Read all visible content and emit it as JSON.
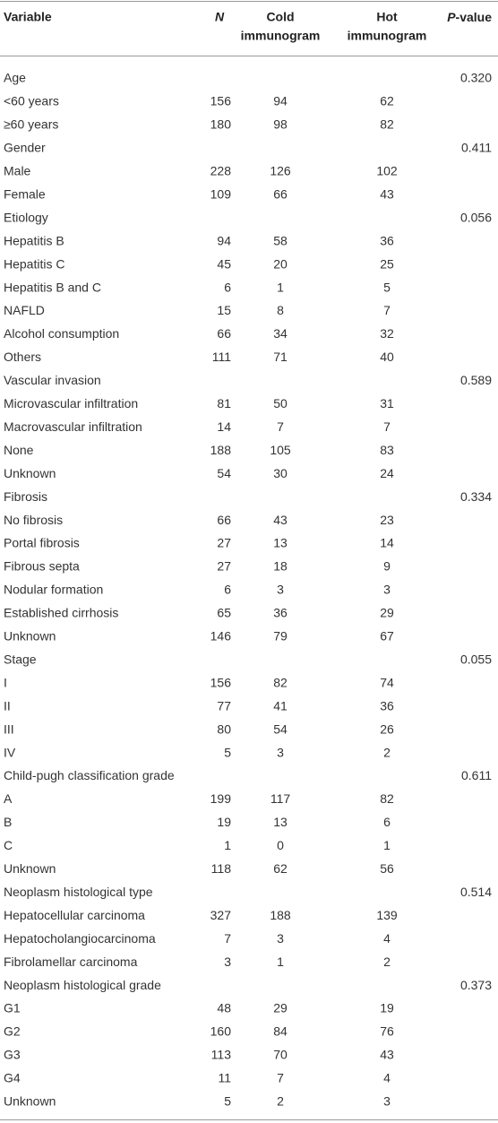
{
  "table": {
    "header": {
      "variable": "Variable",
      "n": "N",
      "cold": [
        "Cold",
        "immunogram"
      ],
      "hot": [
        "Hot",
        "immunogram"
      ],
      "p_value": [
        "P",
        "-value"
      ]
    },
    "rows": [
      {
        "label": "Age",
        "p": "0.320"
      },
      {
        "label": "<60 years",
        "n": "156",
        "cold": "94",
        "hot": "62"
      },
      {
        "label": "≥60 years",
        "n": "180",
        "cold": "98",
        "hot": "82"
      },
      {
        "label": "Gender",
        "p": "0.411"
      },
      {
        "label": "Male",
        "n": "228",
        "cold": "126",
        "hot": "102"
      },
      {
        "label": "Female",
        "n": "109",
        "cold": "66",
        "hot": "43"
      },
      {
        "label": "Etiology",
        "p": "0.056"
      },
      {
        "label": "Hepatitis B",
        "n": "94",
        "cold": "58",
        "hot": "36"
      },
      {
        "label": "Hepatitis C",
        "n": "45",
        "cold": "20",
        "hot": "25"
      },
      {
        "label": "Hepatitis B and C",
        "n": "6",
        "cold": "1",
        "hot": "5"
      },
      {
        "label": "NAFLD",
        "n": "15",
        "cold": "8",
        "hot": "7"
      },
      {
        "label": "Alcohol consumption",
        "n": "66",
        "cold": "34",
        "hot": "32"
      },
      {
        "label": "Others",
        "n": "111",
        "cold": "71",
        "hot": "40"
      },
      {
        "label": "Vascular invasion",
        "p": "0.589"
      },
      {
        "label": "Microvascular infiltration",
        "n": "81",
        "cold": "50",
        "hot": "31"
      },
      {
        "label": "Macrovascular infiltration",
        "n": "14",
        "cold": "7",
        "hot": "7"
      },
      {
        "label": "None",
        "n": "188",
        "cold": "105",
        "hot": "83"
      },
      {
        "label": "Unknown",
        "n": "54",
        "cold": "30",
        "hot": "24"
      },
      {
        "label": "Fibrosis",
        "p": "0.334"
      },
      {
        "label": "No fibrosis",
        "n": "66",
        "cold": "43",
        "hot": "23"
      },
      {
        "label": "Portal fibrosis",
        "n": "27",
        "cold": "13",
        "hot": "14"
      },
      {
        "label": "Fibrous septa",
        "n": "27",
        "cold": "18",
        "hot": "9"
      },
      {
        "label": "Nodular formation",
        "n": "6",
        "cold": "3",
        "hot": "3"
      },
      {
        "label": "Established cirrhosis",
        "n": "65",
        "cold": "36",
        "hot": "29"
      },
      {
        "label": "Unknown",
        "n": "146",
        "cold": "79",
        "hot": "67"
      },
      {
        "label": "Stage",
        "p": "0.055"
      },
      {
        "label": "I",
        "n": "156",
        "cold": "82",
        "hot": "74"
      },
      {
        "label": "II",
        "n": "77",
        "cold": "41",
        "hot": "36"
      },
      {
        "label": "III",
        "n": "80",
        "cold": "54",
        "hot": "26"
      },
      {
        "label": "IV",
        "n": "5",
        "cold": "3",
        "hot": "2"
      },
      {
        "label": "Child-pugh classification grade",
        "p": "0.611"
      },
      {
        "label": "A",
        "n": "199",
        "cold": "117",
        "hot": "82"
      },
      {
        "label": "B",
        "n": "19",
        "cold": "13",
        "hot": "6"
      },
      {
        "label": "C",
        "n": "1",
        "cold": "0",
        "hot": "1"
      },
      {
        "label": "Unknown",
        "n": "118",
        "cold": "62",
        "hot": "56"
      },
      {
        "label": "Neoplasm histological type",
        "p": "0.514"
      },
      {
        "label": "Hepatocellular carcinoma",
        "n": "327",
        "cold": "188",
        "hot": "139"
      },
      {
        "label": "Hepatocholangiocarcinoma",
        "n": "7",
        "cold": "3",
        "hot": "4"
      },
      {
        "label": "Fibrolamellar carcinoma",
        "n": "3",
        "cold": "1",
        "hot": "2"
      },
      {
        "label": "Neoplasm histological grade",
        "p": "0.373"
      },
      {
        "label": "G1",
        "n": "48",
        "cold": "29",
        "hot": "19"
      },
      {
        "label": "G2",
        "n": "160",
        "cold": "84",
        "hot": "76"
      },
      {
        "label": "G3",
        "n": "113",
        "cold": "70",
        "hot": "43"
      },
      {
        "label": "G4",
        "n": "11",
        "cold": "7",
        "hot": "4"
      },
      {
        "label": "Unknown",
        "n": "5",
        "cold": "2",
        "hot": "3"
      }
    ]
  }
}
